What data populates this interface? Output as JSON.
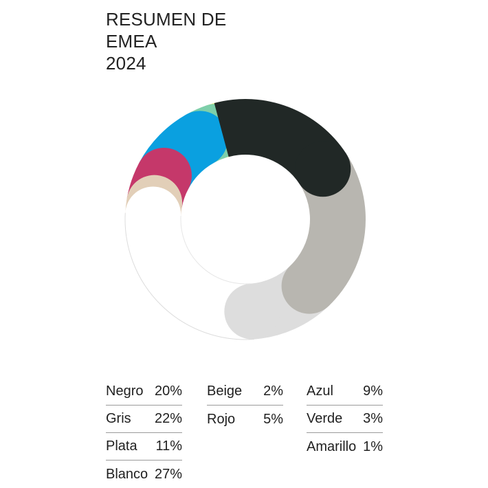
{
  "title_lines": [
    "RESUMEN DE",
    "EMEA",
    "2024"
  ],
  "chart_data": {
    "type": "pie",
    "title": "RESUMEN DE EMEA 2024",
    "categories": [
      "Negro",
      "Gris",
      "Plata",
      "Blanco",
      "Beige",
      "Rojo",
      "Azul",
      "Verde",
      "Amarillo"
    ],
    "values": [
      20,
      22,
      11,
      27,
      2,
      5,
      9,
      3,
      1
    ],
    "series": [
      {
        "name": "Negro",
        "value": 20,
        "label": "20%",
        "color": "#212826"
      },
      {
        "name": "Gris",
        "value": 22,
        "label": "22%",
        "color": "#b8b6b0"
      },
      {
        "name": "Plata",
        "value": 11,
        "label": "11%",
        "color": "#dddddd"
      },
      {
        "name": "Blanco",
        "value": 27,
        "label": "27%",
        "color": "#ffffff"
      },
      {
        "name": "Beige",
        "value": 2,
        "label": "2%",
        "color": "#e2cfb8"
      },
      {
        "name": "Rojo",
        "value": 5,
        "label": "5%",
        "color": "#c5386a"
      },
      {
        "name": "Azul",
        "value": 9,
        "label": "9%",
        "color": "#0aa0e0"
      },
      {
        "name": "Verde",
        "value": 3,
        "label": "3%",
        "color": "#7ecfaa"
      },
      {
        "name": "Amarillo",
        "value": 1,
        "label": "1%",
        "color": "#f7ee78"
      }
    ],
    "legend_columns": [
      [
        "Negro",
        "Gris",
        "Plata",
        "Blanco"
      ],
      [
        "Beige",
        "Rojo"
      ],
      [
        "Azul",
        "Verde",
        "Amarillo"
      ]
    ],
    "legend_placement": "bottom"
  }
}
